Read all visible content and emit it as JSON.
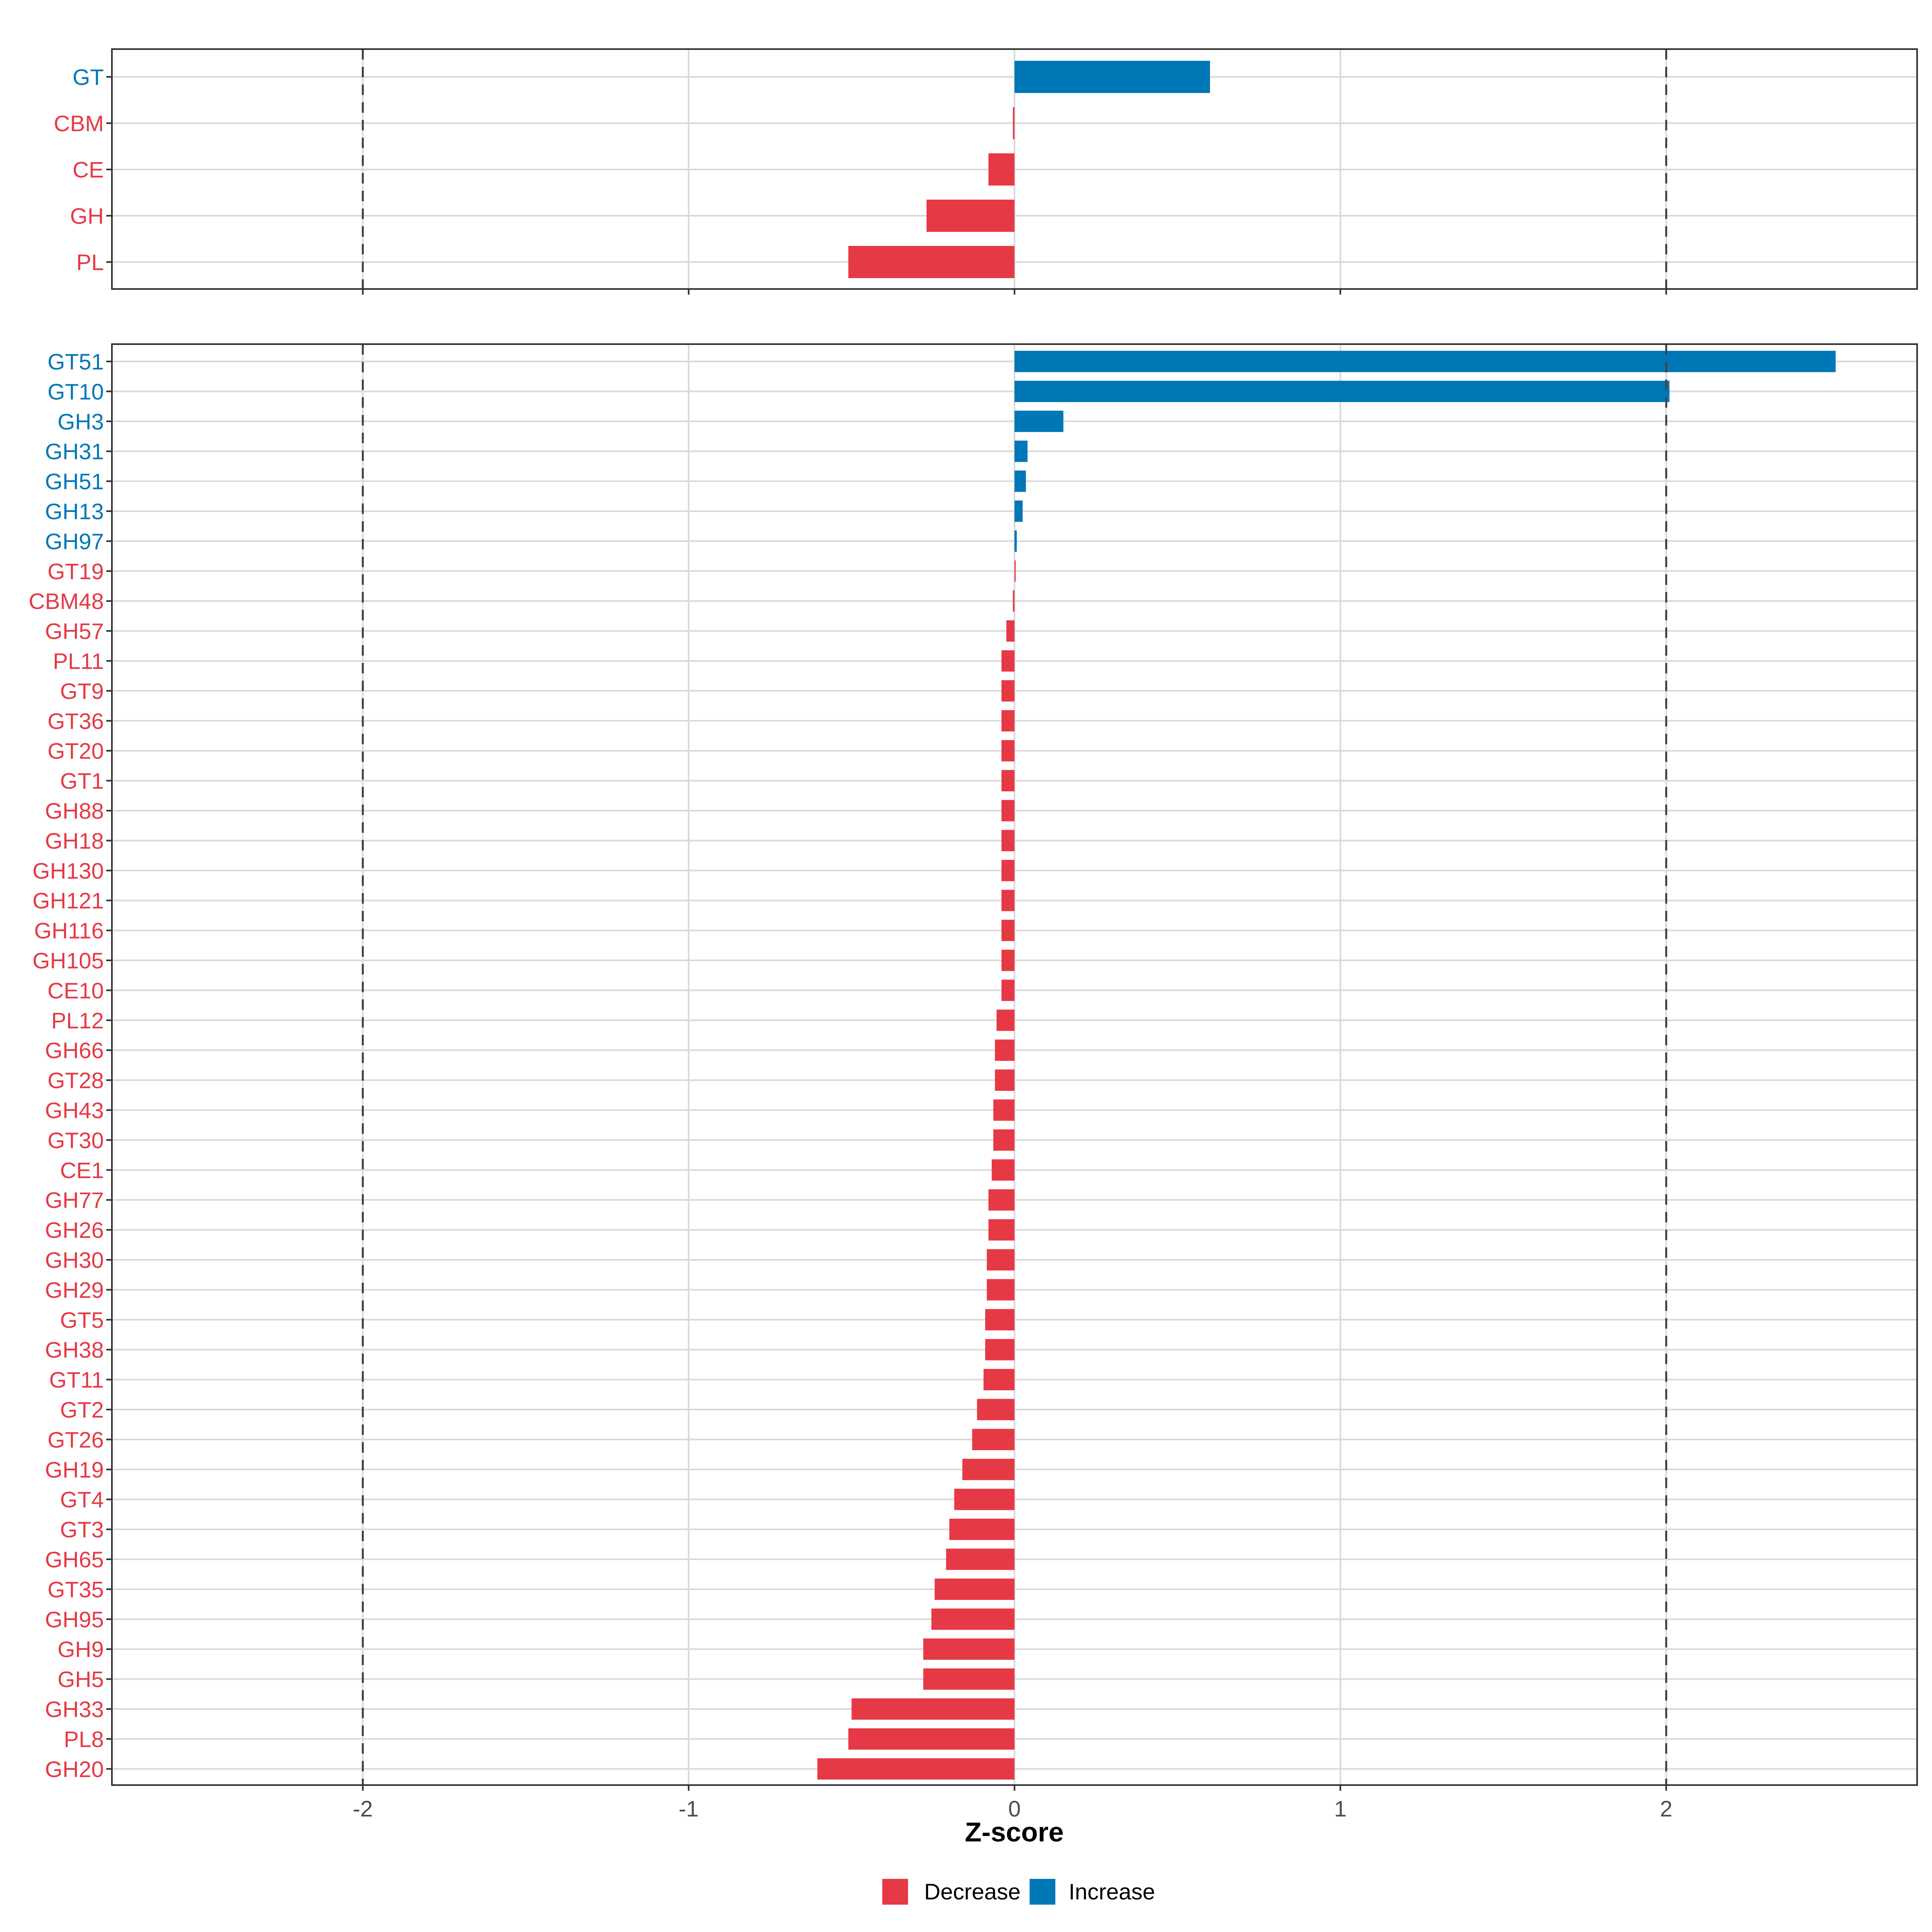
{
  "chart_data": [
    {
      "type": "bar",
      "orientation": "horizontal",
      "panel": "top",
      "categories": [
        "GT",
        "CBM",
        "CE",
        "GH",
        "PL"
      ],
      "values": [
        0.6,
        -0.005,
        -0.08,
        -0.27,
        -0.51
      ],
      "groups": [
        "Increase",
        "Decrease",
        "Decrease",
        "Decrease",
        "Decrease"
      ],
      "xlim": [
        -2.77,
        2.77
      ],
      "reference_lines": [
        -2,
        2
      ]
    },
    {
      "type": "bar",
      "orientation": "horizontal",
      "panel": "bottom",
      "categories": [
        "GT51",
        "GT10",
        "GH3",
        "GH31",
        "GH51",
        "GH13",
        "GH97",
        "GT19",
        "CBM48",
        "GH57",
        "PL11",
        "GT9",
        "GT36",
        "GT20",
        "GT1",
        "GH88",
        "GH18",
        "GH130",
        "GH121",
        "GH116",
        "GH105",
        "CE10",
        "PL12",
        "GH66",
        "GT28",
        "GH43",
        "GT30",
        "CE1",
        "GH77",
        "GH26",
        "GH30",
        "GH29",
        "GT5",
        "GH38",
        "GT11",
        "GT2",
        "GT26",
        "GH19",
        "GT4",
        "GT3",
        "GH65",
        "GT35",
        "GH95",
        "GH9",
        "GH5",
        "GH33",
        "PL8",
        "GH20"
      ],
      "values": [
        2.52,
        2.01,
        0.15,
        0.04,
        0.035,
        0.025,
        0.007,
        0.0,
        -0.005,
        -0.025,
        -0.04,
        -0.04,
        -0.04,
        -0.04,
        -0.04,
        -0.04,
        -0.04,
        -0.04,
        -0.04,
        -0.04,
        -0.04,
        -0.04,
        -0.055,
        -0.06,
        -0.06,
        -0.065,
        -0.065,
        -0.07,
        -0.08,
        -0.08,
        -0.085,
        -0.085,
        -0.09,
        -0.09,
        -0.095,
        -0.115,
        -0.13,
        -0.16,
        -0.185,
        -0.2,
        -0.21,
        -0.245,
        -0.255,
        -0.28,
        -0.28,
        -0.5,
        -0.51,
        -0.605
      ],
      "groups": [
        "Increase",
        "Increase",
        "Increase",
        "Increase",
        "Increase",
        "Increase",
        "Increase",
        "Decrease",
        "Decrease",
        "Decrease",
        "Decrease",
        "Decrease",
        "Decrease",
        "Decrease",
        "Decrease",
        "Decrease",
        "Decrease",
        "Decrease",
        "Decrease",
        "Decrease",
        "Decrease",
        "Decrease",
        "Decrease",
        "Decrease",
        "Decrease",
        "Decrease",
        "Decrease",
        "Decrease",
        "Decrease",
        "Decrease",
        "Decrease",
        "Decrease",
        "Decrease",
        "Decrease",
        "Decrease",
        "Decrease",
        "Decrease",
        "Decrease",
        "Decrease",
        "Decrease",
        "Decrease",
        "Decrease",
        "Decrease",
        "Decrease",
        "Decrease",
        "Decrease",
        "Decrease",
        "Decrease"
      ],
      "xlim": [
        -2.77,
        2.77
      ],
      "reference_lines": [
        -2,
        2
      ],
      "xticks": [
        -2,
        -1,
        0,
        1,
        2
      ],
      "xtick_labels": [
        "-2",
        "-1",
        "0",
        "1",
        "2"
      ],
      "xlabel": "Z-score"
    }
  ],
  "legend": {
    "placement": "bottom",
    "items": [
      {
        "label": "Decrease",
        "color": "#E63946"
      },
      {
        "label": "Increase",
        "color": "#0077B6"
      }
    ]
  },
  "colors": {
    "Decrease": "#E63946",
    "Increase": "#0077B6",
    "grid": "#d9d9d9",
    "border": "#333333",
    "reference": "#444444"
  }
}
